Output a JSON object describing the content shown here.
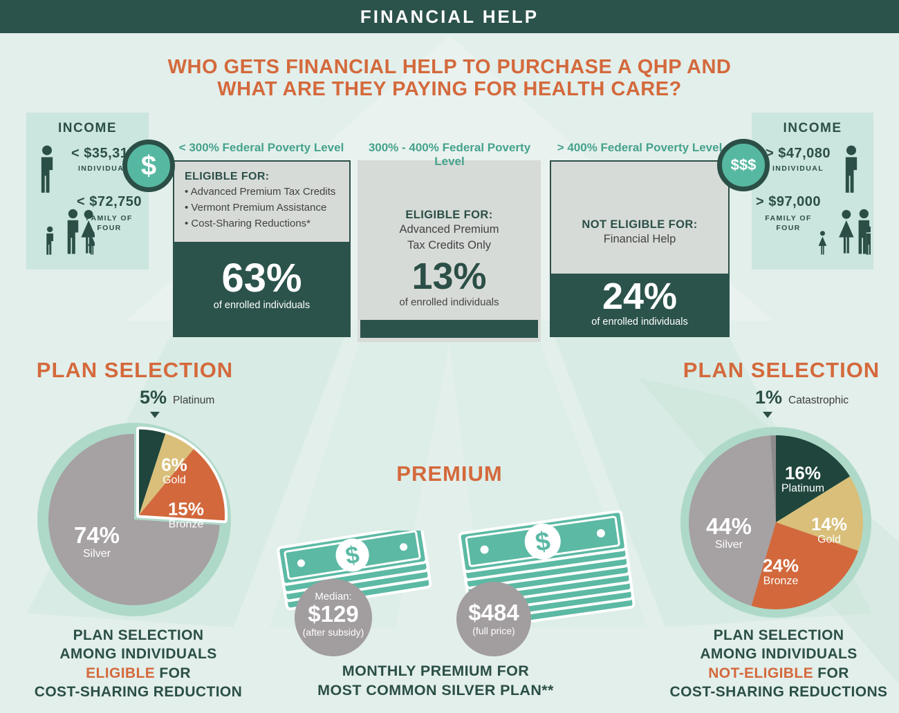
{
  "banner": {
    "title": "FINANCIAL HELP"
  },
  "heading": {
    "line1": "WHO GETS FINANCIAL HELP TO PURCHASE A QHP AND",
    "line2": "WHAT ARE THEY PAYING FOR HEALTH CARE?"
  },
  "income_left": {
    "title": "INCOME",
    "individual_amount": "< $35,310",
    "individual_label": "INDIVIDUAL",
    "family_amount": "< $72,750",
    "family_label_line1": "FAMILY OF",
    "family_label_line2": "FOUR",
    "badge": "$"
  },
  "income_right": {
    "title": "INCOME",
    "individual_amount": "> $47,080",
    "individual_label": "INDIVIDUAL",
    "family_amount": "> $97,000",
    "family_label_line1": "FAMILY OF",
    "family_label_line2": "FOUR",
    "badge": "$$$"
  },
  "columns": [
    {
      "header": "< 300% Federal Poverty Level",
      "panel_title": "ELIGIBLE FOR:",
      "items": [
        "Advanced Premium Tax Credits",
        "Vermont Premium Assistance",
        "Cost-Sharing Reductions*"
      ],
      "pct": "63%",
      "pct_caption": "of enrolled individuals"
    },
    {
      "header": "300% - 400% Federal Poverty Level",
      "panel_title": "ELIGIBLE FOR:",
      "body_line1": "Advanced Premium",
      "body_line2": "Tax Credits Only",
      "pct": "13%",
      "pct_caption": "of enrolled individuals"
    },
    {
      "header": "> 400% Federal Poverty Level",
      "panel_title": "NOT ELIGIBLE FOR:",
      "body_line1": "Financial Help",
      "pct": "24%",
      "pct_caption": "of enrolled individuals"
    }
  ],
  "plan_selection_left_title": "PLAN SELECTION",
  "plan_selection_right_title": "PLAN SELECTION",
  "premium": {
    "title": "PREMIUM",
    "subsidized": {
      "line1": "Median:",
      "amount": "$129",
      "line2": "(after subsidy)"
    },
    "full_price": {
      "amount": "$484",
      "line2": "(full price)"
    },
    "caption_line1": "MONTHLY PREMIUM FOR",
    "caption_line2": "MOST COMMON SILVER PLAN**"
  },
  "caption_left": {
    "line1": "PLAN SELECTION",
    "line2": "AMONG INDIVIDUALS",
    "line3_accent": "ELIGIBLE",
    "line3_rest": " FOR",
    "line4": "COST-SHARING REDUCTION"
  },
  "caption_right": {
    "line1": "PLAN SELECTION",
    "line2": "AMONG INDIVIDUALS",
    "line3_accent": "NOT-ELIGIBLE",
    "line3_rest": " FOR",
    "line4": "COST-SHARING REDUCTIONS"
  },
  "chart_data": [
    {
      "type": "pie",
      "title": "Plan selection among individuals eligible for cost-sharing reduction",
      "labels": [
        "Platinum",
        "Gold",
        "Bronze",
        "Silver"
      ],
      "values": [
        5,
        6,
        15,
        74
      ],
      "colors": [
        "#1f453c",
        "#d9bf7a",
        "#d2683c",
        "#a6a1a3"
      ],
      "callout": {
        "pct": "5%",
        "name": "Platinum"
      },
      "inner_labels": [
        {
          "pct": "6%",
          "name": "Gold"
        },
        {
          "pct": "15%",
          "name": "Bronze"
        },
        {
          "pct": "74%",
          "name": "Silver"
        }
      ]
    },
    {
      "type": "pie",
      "title": "Plan selection among individuals not-eligible for cost-sharing reductions",
      "labels": [
        "Platinum",
        "Gold",
        "Bronze",
        "Silver",
        "Catastrophic"
      ],
      "values": [
        16,
        14,
        24,
        44,
        1
      ],
      "colors": [
        "#1f453c",
        "#d9bf7a",
        "#d2683c",
        "#a6a1a3",
        "#8f8b8d"
      ],
      "callout": {
        "pct": "1%",
        "name": "Catastrophic"
      },
      "inner_labels": [
        {
          "pct": "16%",
          "name": "Platinum"
        },
        {
          "pct": "14%",
          "name": "Gold"
        },
        {
          "pct": "24%",
          "name": "Bronze"
        },
        {
          "pct": "44%",
          "name": "Silver"
        }
      ]
    }
  ],
  "colors": {
    "dark_teal": "#2b534b",
    "teal_accent": "#45a28c",
    "orange": "#d4693c",
    "money_teal": "#5cb9a4",
    "platinum": "#1f453c",
    "gold": "#d9bf7a",
    "bronze": "#d2683c",
    "silver": "#a6a1a3",
    "catastrophic": "#8f8b8d",
    "pie_ring": "#aed9c8",
    "income_bg": "#cbe5df",
    "panel_gray": "#d7dbd8",
    "page_bg": "#e3efeb",
    "price_circle_gray": "#a29d9f"
  }
}
